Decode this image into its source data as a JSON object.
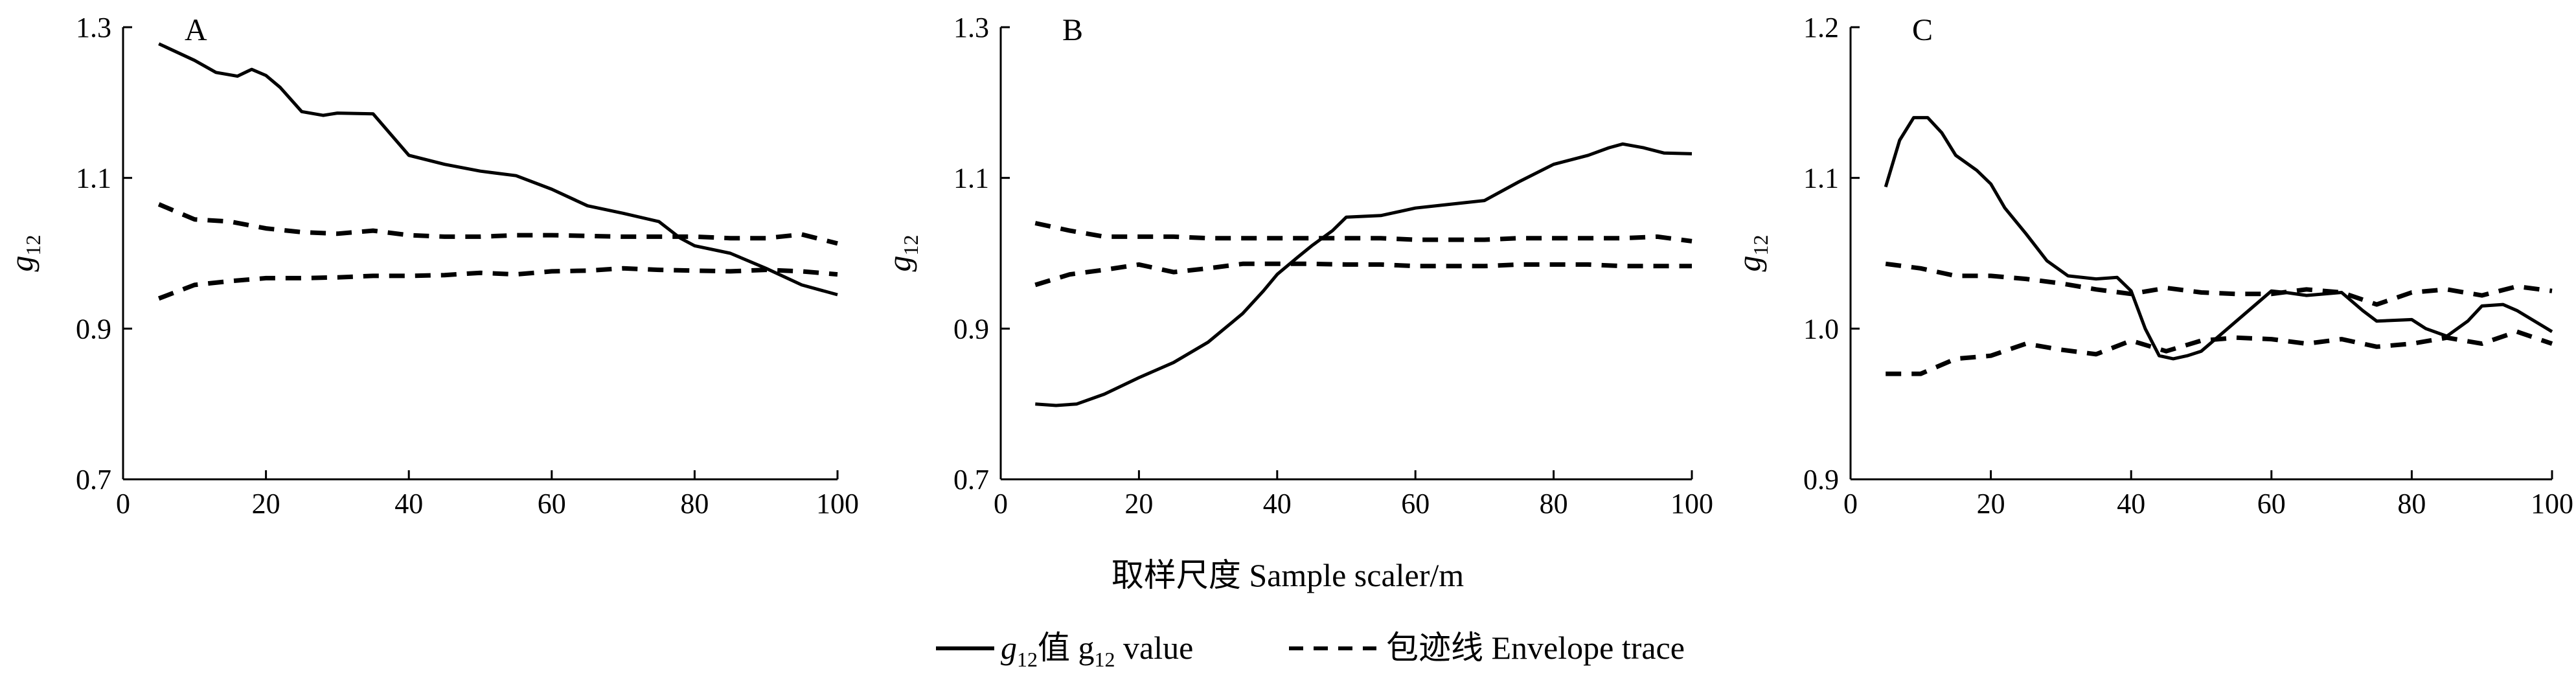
{
  "figure": {
    "xlabel": "取样尺度 Sample scaler/m",
    "ylabel_main": "g",
    "ylabel_sub": "12",
    "legend": {
      "solid_pre": "g",
      "solid_sub": "12",
      "solid_mid": "值  g",
      "solid_sub2": "12",
      "solid_post": " value",
      "dashed": "包迹线  Envelope trace"
    }
  },
  "chart_data": [
    {
      "type": "line",
      "panel": "A",
      "xlim": [
        0,
        100
      ],
      "ylim": [
        0.7,
        1.3
      ],
      "xticks": [
        "0",
        "20",
        "40",
        "60",
        "80",
        "100"
      ],
      "yticks": [
        "0.7",
        "0.9",
        "1.1",
        "1.3"
      ],
      "series": [
        {
          "style": "solid",
          "x": [
            5,
            10,
            13,
            16,
            18,
            20,
            22,
            25,
            28,
            30,
            35,
            40,
            45,
            50,
            55,
            60,
            65,
            70,
            75,
            78,
            80,
            85,
            90,
            95,
            100
          ],
          "y": [
            1.278,
            1.256,
            1.24,
            1.235,
            1.244,
            1.236,
            1.22,
            1.188,
            1.183,
            1.186,
            1.185,
            1.13,
            1.118,
            1.109,
            1.103,
            1.085,
            1.063,
            1.053,
            1.042,
            1.02,
            1.01,
            1.0,
            0.98,
            0.958,
            0.945
          ]
        },
        {
          "style": "dashed",
          "x": [
            5,
            10,
            15,
            20,
            25,
            30,
            35,
            40,
            45,
            50,
            55,
            60,
            65,
            70,
            75,
            80,
            85,
            90,
            95,
            100
          ],
          "y": [
            1.065,
            1.045,
            1.042,
            1.033,
            1.028,
            1.026,
            1.03,
            1.024,
            1.022,
            1.022,
            1.024,
            1.024,
            1.023,
            1.022,
            1.022,
            1.022,
            1.02,
            1.02,
            1.025,
            1.013
          ]
        },
        {
          "style": "dashed",
          "x": [
            5,
            10,
            15,
            20,
            25,
            30,
            35,
            40,
            45,
            50,
            55,
            60,
            65,
            70,
            75,
            80,
            85,
            90,
            95,
            100
          ],
          "y": [
            0.94,
            0.958,
            0.963,
            0.967,
            0.967,
            0.968,
            0.97,
            0.97,
            0.971,
            0.974,
            0.972,
            0.976,
            0.977,
            0.98,
            0.978,
            0.977,
            0.976,
            0.978,
            0.976,
            0.972
          ]
        }
      ]
    },
    {
      "type": "line",
      "panel": "B",
      "xlim": [
        0,
        100
      ],
      "ylim": [
        0.7,
        1.3
      ],
      "xticks": [
        "0",
        "20",
        "40",
        "60",
        "80",
        "100"
      ],
      "yticks": [
        "0.7",
        "0.9",
        "1.1",
        "1.3"
      ],
      "series": [
        {
          "style": "solid",
          "x": [
            5,
            8,
            11,
            15,
            20,
            25,
            30,
            35,
            38,
            40,
            43,
            45,
            48,
            50,
            55,
            60,
            65,
            70,
            75,
            80,
            85,
            88,
            90,
            93,
            96,
            100
          ],
          "y": [
            0.8,
            0.798,
            0.8,
            0.813,
            0.835,
            0.855,
            0.882,
            0.92,
            0.95,
            0.972,
            0.995,
            1.01,
            1.03,
            1.048,
            1.05,
            1.06,
            1.065,
            1.07,
            1.095,
            1.118,
            1.13,
            1.14,
            1.145,
            1.14,
            1.133,
            1.132
          ]
        },
        {
          "style": "dashed",
          "x": [
            5,
            10,
            15,
            20,
            25,
            30,
            35,
            40,
            45,
            50,
            55,
            60,
            65,
            70,
            75,
            80,
            85,
            90,
            95,
            100
          ],
          "y": [
            1.04,
            1.03,
            1.022,
            1.022,
            1.022,
            1.02,
            1.02,
            1.02,
            1.02,
            1.02,
            1.02,
            1.018,
            1.018,
            1.018,
            1.02,
            1.02,
            1.02,
            1.02,
            1.022,
            1.016
          ]
        },
        {
          "style": "dashed",
          "x": [
            5,
            10,
            15,
            20,
            25,
            30,
            35,
            40,
            45,
            50,
            55,
            60,
            65,
            70,
            75,
            80,
            85,
            90,
            95,
            100
          ],
          "y": [
            0.958,
            0.972,
            0.978,
            0.985,
            0.975,
            0.98,
            0.986,
            0.986,
            0.986,
            0.985,
            0.985,
            0.983,
            0.983,
            0.983,
            0.985,
            0.985,
            0.985,
            0.983,
            0.983,
            0.983
          ]
        }
      ]
    },
    {
      "type": "line",
      "panel": "C",
      "xlim": [
        0,
        100
      ],
      "ylim": [
        0.9,
        1.2
      ],
      "xticks": [
        "0",
        "20",
        "40",
        "60",
        "80",
        "100"
      ],
      "yticks": [
        "0.9",
        "1.0",
        "1.1",
        "1.2"
      ],
      "series": [
        {
          "style": "solid",
          "x": [
            5,
            7,
            9,
            11,
            13,
            15,
            18,
            20,
            22,
            25,
            28,
            31,
            35,
            38,
            40,
            42,
            44,
            46,
            48,
            50,
            55,
            60,
            62,
            65,
            70,
            73,
            75,
            80,
            82,
            85,
            88,
            90,
            93,
            95,
            100
          ],
          "y": [
            1.094,
            1.125,
            1.14,
            1.14,
            1.13,
            1.115,
            1.105,
            1.096,
            1.08,
            1.063,
            1.045,
            1.035,
            1.033,
            1.034,
            1.025,
            1.0,
            0.982,
            0.98,
            0.982,
            0.985,
            1.005,
            1.025,
            1.024,
            1.022,
            1.024,
            1.012,
            1.005,
            1.006,
            1.0,
            0.995,
            1.005,
            1.015,
            1.016,
            1.012,
            0.998
          ]
        },
        {
          "style": "dashed",
          "x": [
            5,
            10,
            15,
            20,
            25,
            30,
            35,
            40,
            45,
            50,
            55,
            60,
            65,
            70,
            75,
            80,
            85,
            90,
            95,
            100
          ],
          "y": [
            1.043,
            1.04,
            1.035,
            1.035,
            1.033,
            1.03,
            1.026,
            1.023,
            1.027,
            1.024,
            1.023,
            1.023,
            1.026,
            1.024,
            1.016,
            1.024,
            1.026,
            1.022,
            1.028,
            1.025
          ]
        },
        {
          "style": "dashed",
          "x": [
            5,
            10,
            15,
            20,
            25,
            30,
            35,
            40,
            45,
            50,
            55,
            60,
            65,
            70,
            75,
            80,
            85,
            90,
            95,
            100
          ],
          "y": [
            0.97,
            0.97,
            0.98,
            0.982,
            0.99,
            0.986,
            0.983,
            0.992,
            0.985,
            0.992,
            0.994,
            0.993,
            0.99,
            0.993,
            0.988,
            0.99,
            0.994,
            0.99,
            0.998,
            0.99
          ]
        }
      ]
    }
  ]
}
